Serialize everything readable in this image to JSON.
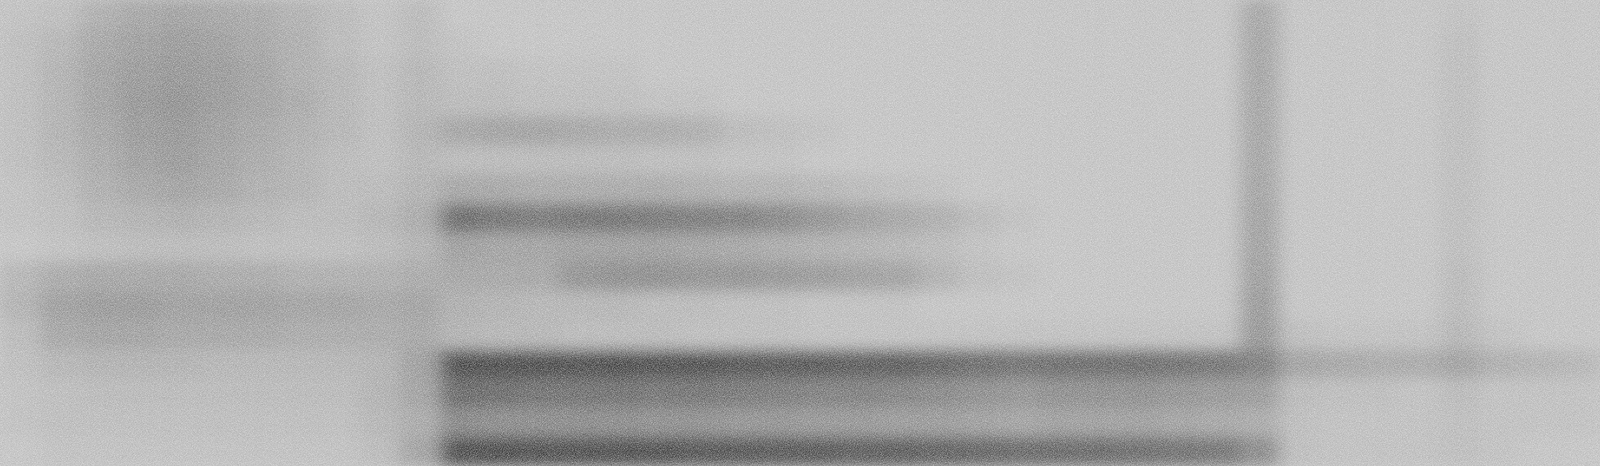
{
  "chart_data": {
    "type": "spectrogram",
    "tick_labels": false,
    "zlim": [
      0,
      100
    ],
    "cells": [
      [
        32,
        34,
        42,
        46,
        48,
        46,
        44,
        40,
        36,
        32,
        36,
        30,
        30,
        30,
        30,
        30,
        30,
        30,
        30,
        30,
        30,
        30,
        30,
        30,
        30,
        30,
        30,
        30,
        30,
        30,
        30,
        45,
        30,
        30,
        30,
        30,
        32,
        30,
        30,
        30
      ],
      [
        34,
        38,
        46,
        50,
        52,
        50,
        46,
        42,
        36,
        32,
        36,
        32,
        30,
        30,
        30,
        30,
        30,
        30,
        30,
        30,
        30,
        30,
        30,
        30,
        30,
        30,
        30,
        30,
        30,
        30,
        30,
        46,
        30,
        30,
        30,
        30,
        34,
        30,
        30,
        30
      ],
      [
        34,
        40,
        48,
        52,
        54,
        52,
        48,
        42,
        38,
        34,
        38,
        34,
        34,
        32,
        32,
        32,
        30,
        30,
        30,
        30,
        30,
        30,
        30,
        30,
        30,
        30,
        30,
        30,
        30,
        30,
        30,
        46,
        30,
        30,
        30,
        30,
        34,
        30,
        30,
        30
      ],
      [
        34,
        40,
        48,
        54,
        56,
        52,
        48,
        44,
        38,
        34,
        38,
        36,
        36,
        34,
        34,
        34,
        32,
        32,
        30,
        30,
        30,
        30,
        30,
        30,
        30,
        30,
        30,
        30,
        30,
        30,
        30,
        46,
        30,
        30,
        30,
        30,
        34,
        30,
        30,
        30
      ],
      [
        34,
        40,
        46,
        52,
        54,
        50,
        46,
        42,
        38,
        34,
        40,
        46,
        48,
        48,
        46,
        44,
        44,
        42,
        36,
        34,
        32,
        30,
        30,
        30,
        30,
        30,
        30,
        30,
        30,
        30,
        30,
        46,
        30,
        30,
        30,
        30,
        34,
        30,
        30,
        30
      ],
      [
        34,
        38,
        44,
        50,
        52,
        48,
        44,
        40,
        36,
        34,
        38,
        36,
        36,
        36,
        36,
        36,
        34,
        34,
        32,
        32,
        30,
        30,
        30,
        30,
        30,
        30,
        30,
        30,
        30,
        30,
        30,
        46,
        30,
        30,
        30,
        30,
        34,
        30,
        30,
        30
      ],
      [
        32,
        36,
        42,
        46,
        48,
        46,
        42,
        40,
        36,
        36,
        40,
        46,
        46,
        44,
        44,
        44,
        44,
        42,
        40,
        40,
        38,
        36,
        34,
        32,
        30,
        30,
        30,
        30,
        30,
        30,
        30,
        47,
        30,
        30,
        30,
        30,
        34,
        30,
        30,
        30
      ],
      [
        32,
        34,
        38,
        40,
        42,
        40,
        38,
        36,
        36,
        38,
        44,
        76,
        72,
        70,
        72,
        72,
        70,
        68,
        66,
        62,
        56,
        50,
        46,
        42,
        36,
        32,
        30,
        30,
        30,
        30,
        30,
        48,
        30,
        30,
        30,
        30,
        34,
        30,
        30,
        30
      ],
      [
        30,
        32,
        34,
        36,
        36,
        36,
        34,
        34,
        34,
        36,
        40,
        50,
        48,
        48,
        50,
        50,
        50,
        48,
        46,
        44,
        42,
        40,
        38,
        36,
        32,
        30,
        30,
        30,
        30,
        30,
        30,
        48,
        30,
        30,
        30,
        30,
        34,
        30,
        30,
        30
      ],
      [
        38,
        44,
        46,
        46,
        46,
        44,
        44,
        42,
        42,
        42,
        44,
        46,
        46,
        46,
        56,
        58,
        58,
        56,
        56,
        54,
        52,
        50,
        48,
        40,
        34,
        32,
        30,
        30,
        30,
        30,
        30,
        50,
        30,
        30,
        30,
        30,
        36,
        30,
        30,
        30
      ],
      [
        40,
        50,
        52,
        52,
        50,
        50,
        50,
        48,
        48,
        46,
        48,
        42,
        40,
        38,
        38,
        38,
        36,
        36,
        34,
        34,
        32,
        32,
        32,
        30,
        30,
        30,
        30,
        30,
        30,
        30,
        30,
        52,
        30,
        30,
        30,
        30,
        36,
        30,
        30,
        30
      ],
      [
        36,
        46,
        48,
        48,
        46,
        46,
        46,
        44,
        44,
        44,
        46,
        40,
        38,
        38,
        36,
        36,
        36,
        34,
        34,
        34,
        32,
        32,
        32,
        32,
        32,
        32,
        32,
        32,
        32,
        32,
        32,
        54,
        34,
        32,
        32,
        32,
        38,
        32,
        30,
        30
      ],
      [
        34,
        38,
        40,
        40,
        40,
        38,
        38,
        38,
        38,
        40,
        50,
        92,
        92,
        92,
        90,
        92,
        90,
        90,
        88,
        86,
        86,
        84,
        84,
        80,
        76,
        74,
        76,
        76,
        76,
        74,
        72,
        66,
        48,
        46,
        44,
        44,
        48,
        42,
        40,
        38
      ],
      [
        32,
        34,
        36,
        36,
        36,
        36,
        36,
        36,
        36,
        40,
        48,
        78,
        76,
        74,
        74,
        74,
        72,
        72,
        70,
        68,
        66,
        66,
        64,
        62,
        58,
        56,
        58,
        58,
        58,
        56,
        54,
        52,
        36,
        34,
        34,
        32,
        36,
        32,
        32,
        32
      ],
      [
        32,
        34,
        34,
        34,
        34,
        34,
        34,
        34,
        34,
        38,
        44,
        62,
        60,
        60,
        60,
        60,
        58,
        58,
        56,
        56,
        54,
        54,
        52,
        52,
        50,
        48,
        50,
        50,
        50,
        48,
        46,
        44,
        34,
        32,
        32,
        32,
        34,
        32,
        32,
        32
      ],
      [
        30,
        32,
        32,
        32,
        32,
        32,
        32,
        32,
        32,
        36,
        48,
        92,
        92,
        90,
        90,
        90,
        90,
        88,
        88,
        86,
        86,
        84,
        84,
        82,
        80,
        78,
        78,
        78,
        76,
        74,
        72,
        60,
        34,
        32,
        32,
        32,
        34,
        32,
        30,
        30
      ]
    ]
  }
}
